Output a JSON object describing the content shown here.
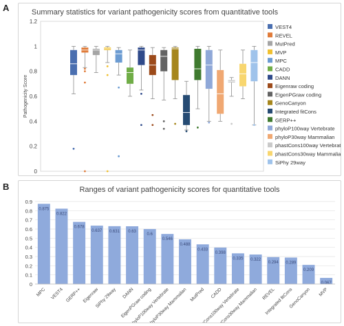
{
  "panels": {
    "a": "A",
    "b": "B"
  },
  "chart_data": [
    {
      "type": "box",
      "title": "Summary statistics for variant pathogenicity scores from quantitative tools",
      "ylabel": "Pathogenicity Score",
      "ylim": [
        0,
        1.2
      ],
      "yticks": [
        0,
        0.2,
        0.4,
        0.6,
        0.8,
        1,
        1.2
      ],
      "grid": false,
      "legend_position": "right",
      "series": [
        {
          "name": "VEST4",
          "color": "#4a6fb0",
          "whisker_low": 0.62,
          "q1": 0.77,
          "median": 0.86,
          "q3": 0.97,
          "whisker_high": 1.0,
          "outliers": [
            0.18
          ]
        },
        {
          "name": "REVEL",
          "color": "#e07b39",
          "whisker_low": 0.83,
          "q1": 0.95,
          "median": 0.97,
          "q3": 0.99,
          "whisker_high": 1.0,
          "outliers": [
            0.0,
            0.71,
            0.8,
            0.82
          ]
        },
        {
          "name": "MutPred",
          "color": "#a5a5a5",
          "whisker_low": 0.79,
          "q1": 0.93,
          "median": 0.97,
          "q3": 0.98,
          "whisker_high": 1.0,
          "outliers": []
        },
        {
          "name": "MVP",
          "color": "#f0c030",
          "whisker_low": 0.87,
          "q1": 0.97,
          "median": 0.98,
          "q3": 0.99,
          "whisker_high": 1.0,
          "outliers": [
            0.0,
            0.77,
            0.84
          ]
        },
        {
          "name": "MPC",
          "color": "#6b9bd2",
          "whisker_low": 0.77,
          "q1": 0.87,
          "median": 0.94,
          "q3": 0.97,
          "whisker_high": 0.99,
          "outliers": [
            0.12,
            0.67
          ]
        },
        {
          "name": "CADD",
          "color": "#70ad47",
          "whisker_low": 0.6,
          "q1": 0.7,
          "median": 0.79,
          "q3": 0.83,
          "whisker_high": 0.97,
          "outliers": []
        },
        {
          "name": "DANN",
          "color": "#2f4a8a",
          "whisker_low": 0.65,
          "q1": 0.85,
          "median": 0.97,
          "q3": 0.99,
          "whisker_high": 1.0,
          "outliers": [
            0.37,
            0.62
          ]
        },
        {
          "name": "Eigenraw coding",
          "color": "#9c4a1a",
          "whisker_low": 0.58,
          "q1": 0.77,
          "median": 0.85,
          "q3": 0.93,
          "whisker_high": 0.99,
          "outliers": [
            0.37,
            0.45
          ]
        },
        {
          "name": "EigenPGraw coding",
          "color": "#636363",
          "whisker_low": 0.57,
          "q1": 0.8,
          "median": 0.92,
          "q3": 0.97,
          "whisker_high": 0.99,
          "outliers": [
            0.34,
            0.4
          ]
        },
        {
          "name": "GenoCanyon",
          "color": "#a6861c",
          "whisker_low": 0.58,
          "q1": 0.73,
          "median": 0.98,
          "q3": 0.99,
          "whisker_high": 1.0,
          "outliers": [
            0.38
          ]
        },
        {
          "name": "Integrated fitCons",
          "color": "#264b73",
          "whisker_low": 0.33,
          "q1": 0.37,
          "median": 0.47,
          "q3": 0.61,
          "whisker_high": 0.72,
          "outliers": [
            0.32
          ]
        },
        {
          "name": "GERP++",
          "color": "#3f7a2f",
          "whisker_low": 0.5,
          "q1": 0.73,
          "median": 0.82,
          "q3": 0.98,
          "whisker_high": 1.0,
          "outliers": [
            0.35
          ]
        },
        {
          "name": "phyloP100way Vertebrate",
          "color": "#8fa8d8",
          "whisker_low": 0.4,
          "q1": 0.66,
          "median": 0.85,
          "q3": 0.97,
          "whisker_high": 1.0,
          "outliers": [
            0.39
          ]
        },
        {
          "name": "phyloP30way Mammalian",
          "color": "#f0a872",
          "whisker_low": 0.4,
          "q1": 0.46,
          "median": 0.62,
          "q3": 0.81,
          "whisker_high": 0.97,
          "outliers": []
        },
        {
          "name": "phastCons100way Vertebrate",
          "color": "#c9c9c9",
          "whisker_low": 0.6,
          "q1": 0.71,
          "median": 0.72,
          "q3": 0.73,
          "whisker_high": 0.75,
          "outliers": [
            0.38
          ]
        },
        {
          "name": "phastCons30way Mammalian",
          "color": "#f8d66f",
          "whisker_low": 0.58,
          "q1": 0.68,
          "median": 0.78,
          "q3": 0.86,
          "whisker_high": 0.97,
          "outliers": []
        },
        {
          "name": "SiPhy 29way",
          "color": "#9fc3eb",
          "whisker_low": 0.37,
          "q1": 0.72,
          "median": 0.87,
          "q3": 0.97,
          "whisker_high": 1.0,
          "outliers": [
            0.37
          ]
        }
      ]
    },
    {
      "type": "bar",
      "title": "Ranges of variant pathogenicity scores for quantitative tools",
      "ylim": [
        0,
        0.9
      ],
      "yticks": [
        0,
        0.1,
        0.2,
        0.3,
        0.4,
        0.5,
        0.6,
        0.7,
        0.8,
        0.9
      ],
      "grid": true,
      "bar_color": "#8faadc",
      "categories": [
        "MPC",
        "VEST4",
        "GERP++",
        "Eigenraw",
        "SiPhy 29way",
        "DANN",
        "EigenPGraw coding",
        "phyloP100way Vertebrate",
        "phyloP30way Mammalian",
        "MutPred",
        "CADD",
        "phastCons100way Vertebrate",
        "phastCons30way Mammalian",
        "REVEL",
        "Integrated fitCons",
        "GenoCanyon",
        "MVP"
      ],
      "values": [
        0.875,
        0.822,
        0.678,
        0.637,
        0.631,
        0.63,
        0.6,
        0.546,
        0.488,
        0.433,
        0.398,
        0.335,
        0.322,
        0.294,
        0.289,
        0.209,
        0.067
      ],
      "value_labels": [
        "0.875",
        "0.822",
        "0.678",
        "0.637",
        "0.631",
        "0.63",
        "0.6",
        "0.546",
        "0.488",
        "0.433",
        "0.398",
        "0.335",
        "0.322",
        "0.294",
        "0.289",
        "0.209",
        "0.067"
      ]
    }
  ]
}
